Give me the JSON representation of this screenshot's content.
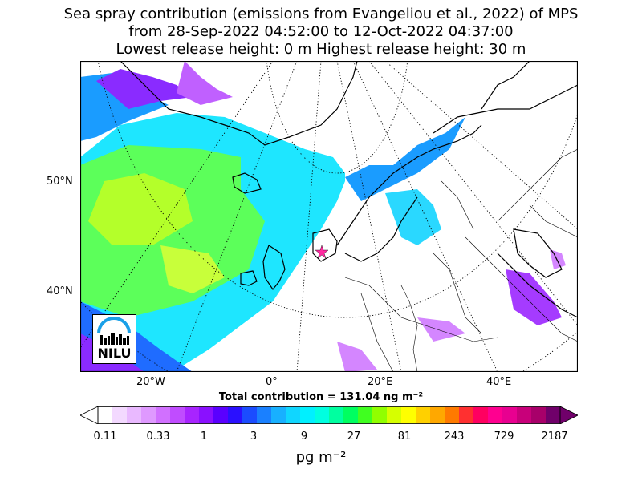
{
  "title": {
    "line1": "Sea spray contribution (emissions from Evangeliou et al., 2022) of MPS",
    "line2": "from 28-Sep-2022 04:52:00 to 12-Oct-2022 04:37:00",
    "line3": "Lowest release height: 0 m      Highest release height: 30 m"
  },
  "map": {
    "lon_labels": [
      "20°W",
      "0°",
      "20°E",
      "40°E"
    ],
    "lat_labels": [
      "50°N",
      "40°N"
    ],
    "logo_text": "NILU",
    "total": "Total contribution = 131.04 ng m⁻²"
  },
  "colorbar": {
    "tick_labels": [
      "0.11",
      "0.33",
      "1",
      "3",
      "9",
      "27",
      "81",
      "243",
      "729",
      "2187"
    ],
    "unit": "pg m⁻²",
    "colors": [
      "#ffffff",
      "#f3d9ff",
      "#e9b9ff",
      "#df99ff",
      "#d170ff",
      "#c04cff",
      "#a824ff",
      "#8a10ff",
      "#5a00ff",
      "#2a10ff",
      "#1b4cff",
      "#1a80ff",
      "#18b0ff",
      "#10d6ff",
      "#00f0ff",
      "#00ffe0",
      "#00ffa0",
      "#00ff60",
      "#40ff20",
      "#90ff00",
      "#d6ff00",
      "#ffff00",
      "#ffd000",
      "#ffa800",
      "#ff7a00",
      "#ff3030",
      "#ff0060",
      "#ff0090",
      "#e80090",
      "#c8007a",
      "#a8006a",
      "#70006a"
    ]
  }
}
